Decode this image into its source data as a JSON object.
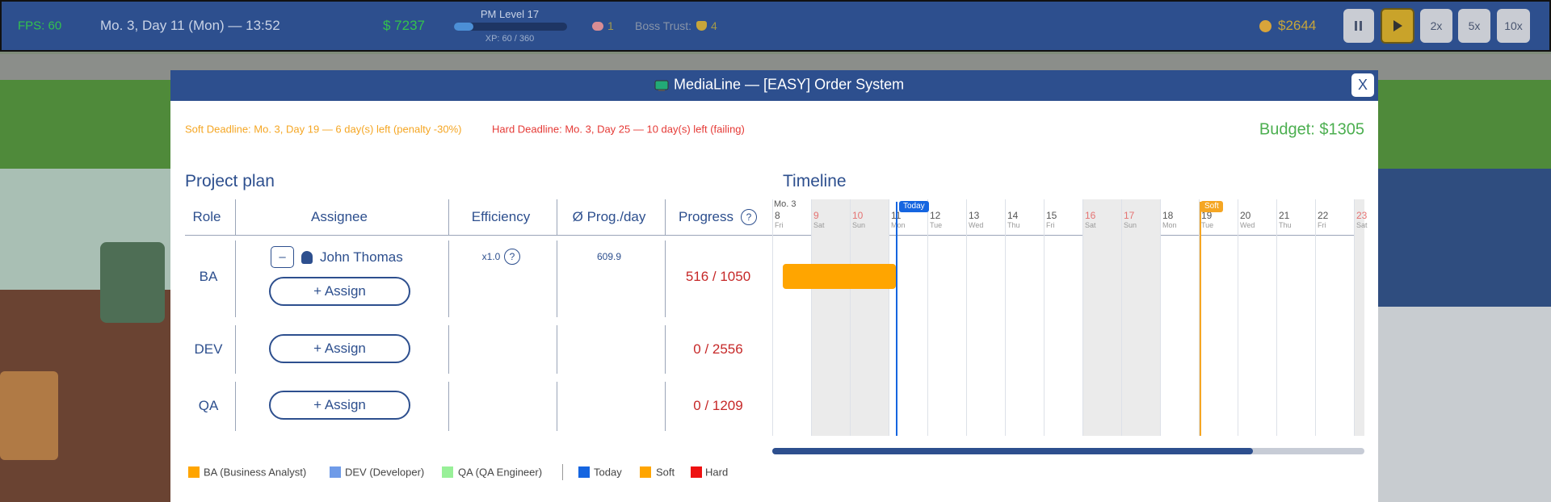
{
  "hud": {
    "fps": "FPS: 60",
    "date": "Mo. 3, Day 11 (Mon) — 13:52",
    "money": "$ 7237",
    "pm_level": "PM Level 17",
    "xp": "XP: 60 / 360",
    "ideas": "1",
    "boss_trust_label": "Boss Trust:",
    "boss_trust": "4",
    "cash": "$2644",
    "speeds": [
      "2x",
      "5x",
      "10x"
    ]
  },
  "modal": {
    "title": "MediaLine — [EASY] Order System",
    "close": "X",
    "soft_deadline": "Soft Deadline: Mo. 3, Day 19 — 6 day(s) left (penalty -30%)",
    "hard_deadline": "Hard Deadline: Mo. 3, Day 25 — 10 day(s) left (failing)",
    "budget": "Budget: $1305"
  },
  "plan": {
    "title": "Project plan",
    "columns": [
      "Role",
      "Assignee",
      "Efficiency",
      "Ø Prog./day",
      "Progress"
    ],
    "help": "?",
    "rows": [
      {
        "role": "BA",
        "remove": "–",
        "assignee": "John Thomas",
        "assign": "+ Assign",
        "efficiency": "x1.0",
        "help": "?",
        "prog_per_day": "609.9",
        "progress": "516 / 1050"
      },
      {
        "role": "DEV",
        "assign": "+ Assign",
        "progress": "0 / 2556"
      },
      {
        "role": "QA",
        "assign": "+ Assign",
        "progress": "0 / 1209"
      }
    ]
  },
  "timeline": {
    "title": "Timeline",
    "month": "Mo. 3",
    "today": "Today",
    "soft": "Soft",
    "days": [
      {
        "day": "8",
        "weekday": "Fri"
      },
      {
        "day": "9",
        "weekday": "Sat"
      },
      {
        "day": "10",
        "weekday": "Sun"
      },
      {
        "day": "11",
        "weekday": "Mon"
      },
      {
        "day": "12",
        "weekday": "Tue"
      },
      {
        "day": "13",
        "weekday": "Wed"
      },
      {
        "day": "14",
        "weekday": "Thu"
      },
      {
        "day": "15",
        "weekday": "Fri"
      },
      {
        "day": "16",
        "weekday": "Sat"
      },
      {
        "day": "17",
        "weekday": "Sun"
      },
      {
        "day": "18",
        "weekday": "Mon"
      },
      {
        "day": "19",
        "weekday": "Tue"
      },
      {
        "day": "20",
        "weekday": "Wed"
      },
      {
        "day": "21",
        "weekday": "Thu"
      },
      {
        "day": "22",
        "weekday": "Fri"
      },
      {
        "day": "23",
        "weekday": "Sat"
      }
    ]
  },
  "legend": [
    "BA (Business Analyst)",
    "DEV (Developer)",
    "QA (QA Engineer)",
    "Today",
    "Soft",
    "Hard"
  ]
}
